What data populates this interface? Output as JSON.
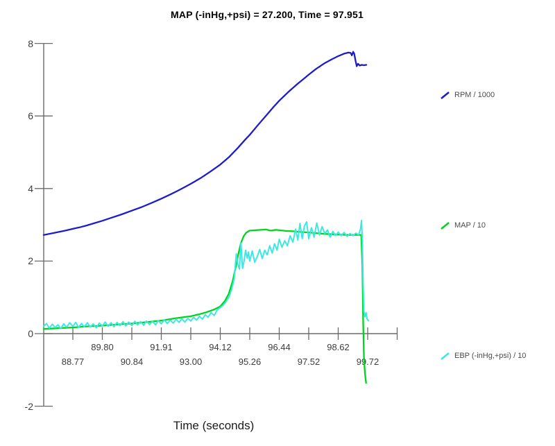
{
  "chart_data": {
    "type": "line",
    "title": "MAP (-inHg,+psi) = 27.200, Time = 97.951",
    "xlabel": "Time (seconds)",
    "ylabel": "",
    "ylim": [
      -2,
      8
    ],
    "grid": false,
    "legend_position": "right",
    "axis_color": "#6a6a6a",
    "label_color": "#3c3c3c",
    "yticks": [
      8,
      6,
      4,
      2,
      0,
      -2
    ],
    "xticks": [
      "88.77",
      "89.80",
      "90.84",
      "91.91",
      "93.00",
      "94.12",
      "95.26",
      "96.44",
      "97.52",
      "98.62",
      "99.72"
    ],
    "series": [
      {
        "name": "RPM / 1000",
        "color": "#1c1ccc",
        "points": [
          [
            87.75,
            2.72
          ],
          [
            88.0,
            2.76
          ],
          [
            88.25,
            2.8
          ],
          [
            88.5,
            2.84
          ],
          [
            88.77,
            2.89
          ],
          [
            89.0,
            2.93
          ],
          [
            89.25,
            2.98
          ],
          [
            89.5,
            3.04
          ],
          [
            89.8,
            3.11
          ],
          [
            90.1,
            3.19
          ],
          [
            90.45,
            3.28
          ],
          [
            90.84,
            3.39
          ],
          [
            91.2,
            3.49
          ],
          [
            91.55,
            3.6
          ],
          [
            91.91,
            3.72
          ],
          [
            92.25,
            3.84
          ],
          [
            92.6,
            3.97
          ],
          [
            93.0,
            4.13
          ],
          [
            93.4,
            4.3
          ],
          [
            93.75,
            4.47
          ],
          [
            94.12,
            4.66
          ],
          [
            94.45,
            4.86
          ],
          [
            94.8,
            5.12
          ],
          [
            95.1,
            5.36
          ],
          [
            95.26,
            5.48
          ],
          [
            95.6,
            5.76
          ],
          [
            95.9,
            6.0
          ],
          [
            96.2,
            6.24
          ],
          [
            96.44,
            6.42
          ],
          [
            96.8,
            6.68
          ],
          [
            97.1,
            6.88
          ],
          [
            97.3,
            7.0
          ],
          [
            97.52,
            7.14
          ],
          [
            97.8,
            7.3
          ],
          [
            98.1,
            7.45
          ],
          [
            98.4,
            7.57
          ],
          [
            98.62,
            7.65
          ],
          [
            98.85,
            7.72
          ],
          [
            99.0,
            7.75
          ],
          [
            99.08,
            7.74
          ],
          [
            99.13,
            7.67
          ],
          [
            99.18,
            7.77
          ],
          [
            99.22,
            7.71
          ],
          [
            99.26,
            7.55
          ],
          [
            99.31,
            7.37
          ],
          [
            99.36,
            7.44
          ],
          [
            99.42,
            7.39
          ],
          [
            99.5,
            7.41
          ],
          [
            99.58,
            7.4
          ],
          [
            99.67,
            7.41
          ]
        ]
      },
      {
        "name": "MAP / 10",
        "color": "#00d41e",
        "points": [
          [
            87.75,
            0.13
          ],
          [
            88.25,
            0.15
          ],
          [
            88.77,
            0.17
          ],
          [
            89.3,
            0.2
          ],
          [
            89.8,
            0.22
          ],
          [
            90.3,
            0.25
          ],
          [
            90.84,
            0.28
          ],
          [
            91.4,
            0.32
          ],
          [
            91.91,
            0.36
          ],
          [
            92.4,
            0.42
          ],
          [
            93.0,
            0.48
          ],
          [
            93.3,
            0.53
          ],
          [
            93.6,
            0.59
          ],
          [
            93.9,
            0.67
          ],
          [
            94.12,
            0.75
          ],
          [
            94.3,
            0.9
          ],
          [
            94.45,
            1.1
          ],
          [
            94.6,
            1.45
          ],
          [
            94.72,
            1.85
          ],
          [
            94.82,
            2.2
          ],
          [
            94.92,
            2.5
          ],
          [
            95.02,
            2.68
          ],
          [
            95.12,
            2.78
          ],
          [
            95.25,
            2.84
          ],
          [
            95.5,
            2.85
          ],
          [
            95.7,
            2.86
          ],
          [
            95.9,
            2.87
          ],
          [
            96.1,
            2.84
          ],
          [
            96.3,
            2.86
          ],
          [
            96.44,
            2.85
          ],
          [
            96.7,
            2.83
          ],
          [
            97.0,
            2.82
          ],
          [
            97.3,
            2.8
          ],
          [
            97.52,
            2.79
          ],
          [
            97.8,
            2.77
          ],
          [
            98.1,
            2.75
          ],
          [
            98.4,
            2.74
          ],
          [
            98.62,
            2.73
          ],
          [
            99.0,
            2.72
          ],
          [
            99.3,
            2.72
          ],
          [
            99.48,
            2.72
          ],
          [
            99.52,
            1.9
          ],
          [
            99.55,
            0.4
          ],
          [
            99.58,
            -0.65
          ],
          [
            99.62,
            -1.1
          ],
          [
            99.66,
            -1.36
          ]
        ]
      },
      {
        "name": "EBP (-inHg,+psi) / 10",
        "color": "#3ce8e4",
        "points": [
          [
            87.75,
            0.2
          ],
          [
            87.85,
            0.28
          ],
          [
            87.95,
            0.15
          ],
          [
            88.05,
            0.26
          ],
          [
            88.15,
            0.17
          ],
          [
            88.25,
            0.24
          ],
          [
            88.35,
            0.14
          ],
          [
            88.45,
            0.27
          ],
          [
            88.55,
            0.18
          ],
          [
            88.66,
            0.3
          ],
          [
            88.77,
            0.2
          ],
          [
            88.87,
            0.31
          ],
          [
            88.97,
            0.17
          ],
          [
            89.07,
            0.28
          ],
          [
            89.17,
            0.19
          ],
          [
            89.28,
            0.3
          ],
          [
            89.38,
            0.18
          ],
          [
            89.48,
            0.27
          ],
          [
            89.59,
            0.16
          ],
          [
            89.69,
            0.29
          ],
          [
            89.8,
            0.21
          ],
          [
            89.9,
            0.32
          ],
          [
            90.0,
            0.2
          ],
          [
            90.11,
            0.3
          ],
          [
            90.21,
            0.19
          ],
          [
            90.32,
            0.31
          ],
          [
            90.42,
            0.22
          ],
          [
            90.53,
            0.33
          ],
          [
            90.63,
            0.21
          ],
          [
            90.73,
            0.32
          ],
          [
            90.84,
            0.22
          ],
          [
            90.95,
            0.34
          ],
          [
            91.05,
            0.24
          ],
          [
            91.16,
            0.33
          ],
          [
            91.27,
            0.23
          ],
          [
            91.37,
            0.35
          ],
          [
            91.48,
            0.25
          ],
          [
            91.59,
            0.34
          ],
          [
            91.7,
            0.24
          ],
          [
            91.8,
            0.36
          ],
          [
            91.91,
            0.27
          ],
          [
            92.02,
            0.38
          ],
          [
            92.13,
            0.28
          ],
          [
            92.24,
            0.37
          ],
          [
            92.35,
            0.29
          ],
          [
            92.46,
            0.4
          ],
          [
            92.57,
            0.31
          ],
          [
            92.67,
            0.41
          ],
          [
            92.78,
            0.32
          ],
          [
            92.89,
            0.42
          ],
          [
            93.0,
            0.35
          ],
          [
            93.11,
            0.45
          ],
          [
            93.22,
            0.37
          ],
          [
            93.33,
            0.48
          ],
          [
            93.44,
            0.4
          ],
          [
            93.55,
            0.52
          ],
          [
            93.66,
            0.45
          ],
          [
            93.77,
            0.58
          ],
          [
            93.89,
            0.5
          ],
          [
            94.0,
            0.65
          ],
          [
            94.12,
            0.72
          ],
          [
            94.23,
            0.78
          ],
          [
            94.34,
            0.88
          ],
          [
            94.45,
            1.0
          ],
          [
            94.56,
            1.22
          ],
          [
            94.66,
            1.52
          ],
          [
            94.74,
            2.2
          ],
          [
            94.8,
            1.9
          ],
          [
            94.86,
            1.78
          ],
          [
            94.92,
            2.5
          ],
          [
            94.98,
            1.8
          ],
          [
            95.04,
            2.0
          ],
          [
            95.1,
            2.3
          ],
          [
            95.16,
            2.08
          ],
          [
            95.21,
            2.25
          ],
          [
            95.26,
            2.0
          ],
          [
            95.36,
            2.28
          ],
          [
            95.46,
            1.97
          ],
          [
            95.56,
            2.12
          ],
          [
            95.66,
            2.32
          ],
          [
            95.76,
            2.07
          ],
          [
            95.86,
            2.3
          ],
          [
            95.96,
            2.17
          ],
          [
            96.06,
            2.42
          ],
          [
            96.16,
            2.22
          ],
          [
            96.25,
            2.48
          ],
          [
            96.35,
            2.3
          ],
          [
            96.44,
            2.6
          ],
          [
            96.54,
            2.38
          ],
          [
            96.64,
            2.56
          ],
          [
            96.74,
            2.42
          ],
          [
            96.84,
            2.7
          ],
          [
            96.94,
            2.52
          ],
          [
            97.04,
            2.88
          ],
          [
            97.12,
            2.58
          ],
          [
            97.2,
            3.04
          ],
          [
            97.28,
            2.62
          ],
          [
            97.36,
            2.96
          ],
          [
            97.44,
            3.08
          ],
          [
            97.52,
            2.62
          ],
          [
            97.62,
            2.92
          ],
          [
            97.72,
            2.66
          ],
          [
            97.82,
            3.05
          ],
          [
            97.92,
            2.72
          ],
          [
            98.02,
            2.95
          ],
          [
            98.12,
            2.76
          ],
          [
            98.22,
            2.86
          ],
          [
            98.32,
            2.66
          ],
          [
            98.42,
            2.82
          ],
          [
            98.52,
            2.7
          ],
          [
            98.62,
            2.8
          ],
          [
            98.73,
            2.7
          ],
          [
            98.84,
            2.79
          ],
          [
            98.95,
            2.68
          ],
          [
            99.06,
            2.76
          ],
          [
            99.17,
            2.7
          ],
          [
            99.28,
            2.77
          ],
          [
            99.38,
            2.72
          ],
          [
            99.45,
            2.88
          ],
          [
            99.49,
            3.12
          ],
          [
            99.52,
            2.55
          ],
          [
            99.55,
            1.4
          ],
          [
            99.58,
            0.62
          ],
          [
            99.62,
            0.46
          ],
          [
            99.66,
            0.58
          ],
          [
            99.7,
            0.4
          ],
          [
            99.75,
            0.36
          ]
        ]
      }
    ]
  }
}
